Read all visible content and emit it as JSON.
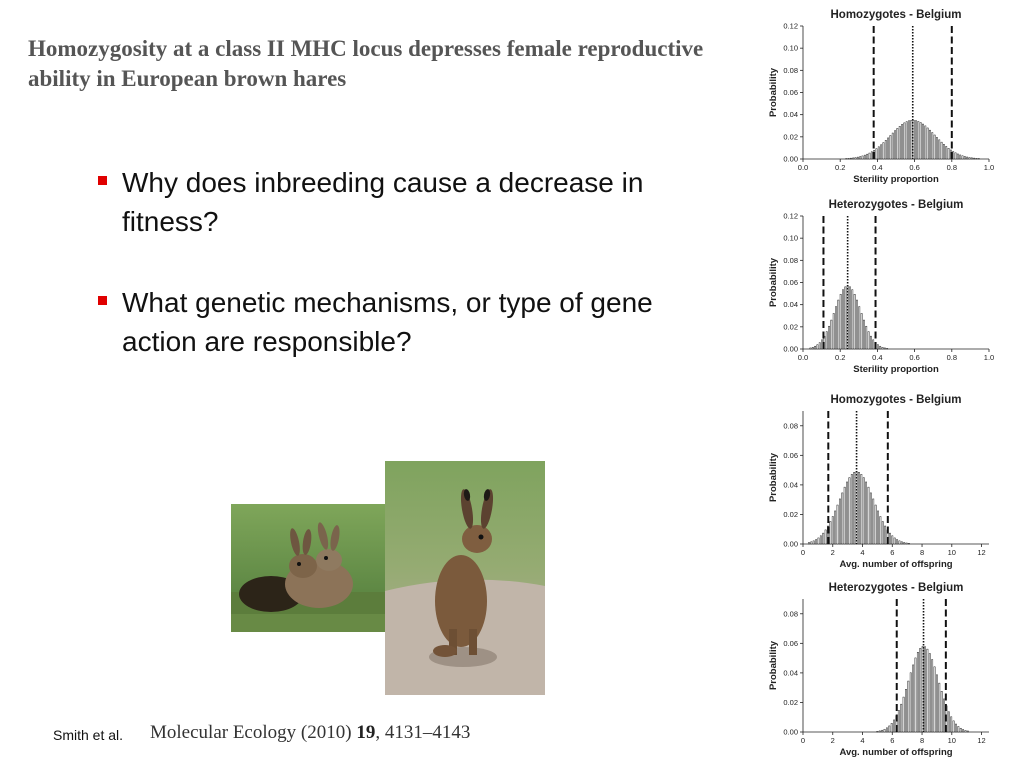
{
  "slide": {
    "title": "Homozygosity at a class II MHC locus depresses female reproductive ability in European brown hares",
    "bullets": [
      "Why does inbreeding cause a decrease in fitness?",
      "What genetic mechanisms, or type of gene action are responsible?"
    ],
    "citation_authors": "Smith et al.",
    "citation_journal": "Molecular Ecology (2010)",
    "citation_volume": "19",
    "citation_pages": ", 4131–4143"
  },
  "chart_data": [
    {
      "type": "bar",
      "title": "Homozygotes - Belgium",
      "xlabel": "Sterility proportion",
      "ylabel": "Probability",
      "xlim": [
        0,
        1
      ],
      "ylim": [
        0,
        0.12
      ],
      "xticks": [
        "0.0",
        "0.2",
        "0.4",
        "0.6",
        "0.8",
        "1.0"
      ],
      "yticks": [
        "0.00",
        "0.02",
        "0.04",
        "0.06",
        "0.08",
        "0.10",
        "0.12"
      ],
      "distribution": {
        "mean": 0.59,
        "sd": 0.12,
        "peak": 0.035,
        "bin_width": 0.0125,
        "from": 0.22,
        "to": 0.97
      },
      "mean_line": 0.59,
      "ci_lines": [
        0.38,
        0.8
      ]
    },
    {
      "type": "bar",
      "title": "Heterozygotes - Belgium",
      "xlabel": "Sterility proportion",
      "ylabel": "Probability",
      "xlim": [
        0,
        1
      ],
      "ylim": [
        0,
        0.12
      ],
      "xticks": [
        "0.0",
        "0.2",
        "0.4",
        "0.6",
        "0.8",
        "1.0"
      ],
      "yticks": [
        "0.00",
        "0.02",
        "0.04",
        "0.06",
        "0.08",
        "0.10",
        "0.12"
      ],
      "distribution": {
        "mean": 0.24,
        "sd": 0.07,
        "peak": 0.057,
        "bin_width": 0.0125,
        "from": 0.04,
        "to": 0.46
      },
      "mean_line": 0.24,
      "ci_lines": [
        0.11,
        0.39
      ]
    },
    {
      "type": "bar",
      "title": "Homozygotes - Belgium",
      "xlabel": "Avg. number of offspring",
      "ylabel": "Probability",
      "xlim": [
        0,
        12.5
      ],
      "ylim": [
        0,
        0.09
      ],
      "xticks": [
        "0",
        "2",
        "4",
        "6",
        "8",
        "10",
        "12"
      ],
      "yticks": [
        "0.00",
        "0.02",
        "0.04",
        "0.06",
        "0.08"
      ],
      "distribution": {
        "mean": 3.6,
        "sd": 1.15,
        "peak": 0.049,
        "bin_width": 0.16,
        "from": 0.4,
        "to": 7.4
      },
      "mean_line": 3.6,
      "ci_lines": [
        1.7,
        5.7
      ]
    },
    {
      "type": "bar",
      "title": "Heterozygotes - Belgium",
      "xlabel": "Avg. number of offspring",
      "ylabel": "Probability",
      "xlim": [
        0,
        12.5
      ],
      "ylim": [
        0,
        0.09
      ],
      "xticks": [
        "0",
        "2",
        "4",
        "6",
        "8",
        "10",
        "12"
      ],
      "yticks": [
        "0.00",
        "0.02",
        "0.04",
        "0.06",
        "0.08"
      ],
      "distribution": {
        "mean": 8.1,
        "sd": 1.0,
        "peak": 0.058,
        "bin_width": 0.16,
        "from": 5.0,
        "to": 11.2
      },
      "mean_line": 8.1,
      "ci_lines": [
        6.3,
        9.6
      ]
    }
  ]
}
